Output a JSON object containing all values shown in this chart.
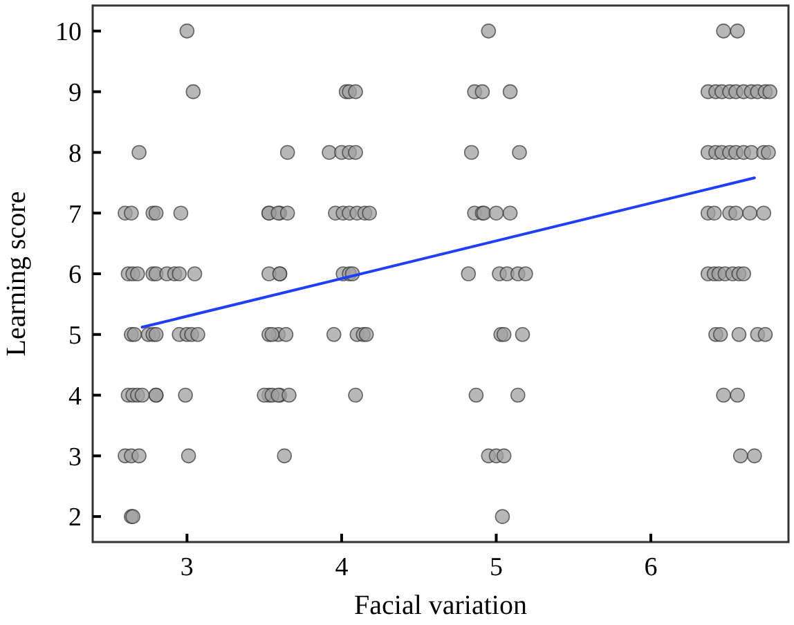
{
  "chart_data": {
    "type": "scatter",
    "xlabel": "Facial variation",
    "ylabel": "Learning score",
    "xlim": [
      2.39,
      6.89
    ],
    "ylim": [
      1.58,
      10.42
    ],
    "xticks": [
      3,
      4,
      5,
      6
    ],
    "yticks": [
      2,
      3,
      4,
      5,
      6,
      7,
      8,
      9,
      10
    ],
    "grid": false,
    "series": [
      {
        "marker": "circle",
        "color": "#a0a0a0",
        "x": [
          3.0,
          3.04,
          2.69,
          2.6,
          2.64,
          2.78,
          2.8,
          2.96,
          3.53,
          3.6,
          2.62,
          2.65,
          2.68,
          2.78,
          2.8,
          2.87,
          2.92,
          2.95,
          3.05,
          3.6,
          2.64,
          2.66,
          2.75,
          2.78,
          2.8,
          2.95,
          3.0,
          3.03,
          3.07,
          3.59,
          2.62,
          2.65,
          2.68,
          2.71,
          2.8,
          2.8,
          2.99,
          3.53,
          3.6,
          2.6,
          2.64,
          2.69,
          3.01,
          2.64,
          2.65,
          4.03,
          4.05,
          4.09,
          3.65,
          3.92,
          4.0,
          4.05,
          4.09,
          3.53,
          3.59,
          3.65,
          3.96,
          4.01,
          4.05,
          4.1,
          4.15,
          4.18,
          3.53,
          3.6,
          4.01,
          4.05,
          4.07,
          3.53,
          3.55,
          3.64,
          3.95,
          4.1,
          4.14,
          4.16,
          3.5,
          3.55,
          3.59,
          3.66,
          4.09,
          3.63,
          4.95,
          4.86,
          4.91,
          5.09,
          4.84,
          5.15,
          4.86,
          4.91,
          4.92,
          5.0,
          5.09,
          4.82,
          5.02,
          5.07,
          5.14,
          5.19,
          5.03,
          5.05,
          5.17,
          4.87,
          5.14,
          4.95,
          5.0,
          5.05,
          5.04,
          6.47,
          6.56,
          6.37,
          6.42,
          6.46,
          6.51,
          6.55,
          6.6,
          6.65,
          6.69,
          6.74,
          6.77,
          6.37,
          6.42,
          6.46,
          6.51,
          6.55,
          6.6,
          6.65,
          6.73,
          6.76,
          6.37,
          6.41,
          6.51,
          6.55,
          6.64,
          6.73,
          6.37,
          6.41,
          6.44,
          6.48,
          6.53,
          6.57,
          6.6,
          6.42,
          6.45,
          6.57,
          6.69,
          6.74,
          6.47,
          6.56,
          6.58,
          6.67
        ],
        "values": [
          10,
          9,
          8,
          7,
          7,
          7,
          7,
          7,
          7,
          7,
          6,
          6,
          6,
          6,
          6,
          6,
          6,
          6,
          6,
          6,
          5,
          5,
          5,
          5,
          5,
          5,
          5,
          5,
          5,
          5,
          4,
          4,
          4,
          4,
          4,
          4,
          4,
          4,
          4,
          3,
          3,
          3,
          3,
          2,
          2,
          9,
          9,
          9,
          8,
          8,
          8,
          8,
          8,
          7,
          7,
          7,
          7,
          7,
          7,
          7,
          7,
          7,
          6,
          6,
          6,
          6,
          6,
          5,
          5,
          5,
          5,
          5,
          5,
          5,
          4,
          4,
          4,
          4,
          4,
          3,
          10,
          9,
          9,
          9,
          8,
          8,
          7,
          7,
          7,
          7,
          7,
          6,
          6,
          6,
          6,
          6,
          5,
          5,
          5,
          4,
          4,
          3,
          3,
          3,
          2,
          10,
          10,
          9,
          9,
          9,
          9,
          9,
          9,
          9,
          9,
          9,
          9,
          8,
          8,
          8,
          8,
          8,
          8,
          8,
          8,
          8,
          7,
          7,
          7,
          7,
          7,
          7,
          6,
          6,
          6,
          6,
          6,
          6,
          6,
          5,
          5,
          5,
          5,
          5,
          4,
          4,
          3,
          3
        ]
      },
      {
        "type": "line",
        "color": "#1f3fff",
        "x": [
          2.71,
          6.67
        ],
        "values": [
          5.12,
          7.58
        ]
      }
    ]
  }
}
